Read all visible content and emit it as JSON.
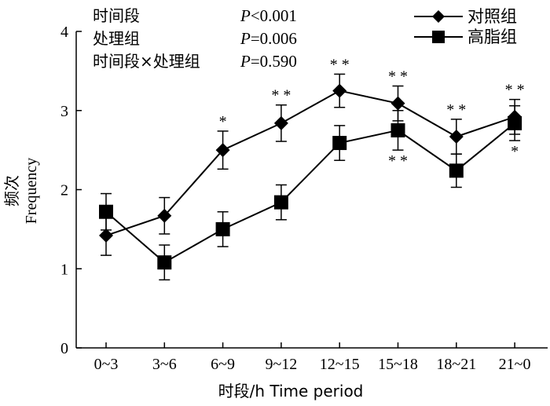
{
  "chart_data": {
    "type": "line",
    "xlabel": "时段/h Time period",
    "ylabel_cn": "频次",
    "ylabel_en": "Frequency",
    "ylim": [
      0,
      4
    ],
    "yticks": [
      0,
      1,
      2,
      3,
      4
    ],
    "categories": [
      "0~3",
      "3~6",
      "6~9",
      "9~12",
      "12~15",
      "15~18",
      "18~21",
      "21~0"
    ],
    "series": [
      {
        "name": "对照组",
        "marker": "diamond",
        "values": [
          1.42,
          1.67,
          2.5,
          2.84,
          3.25,
          3.09,
          2.67,
          2.92
        ],
        "errors": [
          0.25,
          0.23,
          0.24,
          0.23,
          0.21,
          0.22,
          0.22,
          0.22
        ],
        "significance": [
          "",
          "",
          "*",
          "* *",
          "* *",
          "* *",
          "* *",
          "* *"
        ]
      },
      {
        "name": "高脂组",
        "marker": "square",
        "values": [
          1.72,
          1.08,
          1.5,
          1.84,
          2.59,
          2.75,
          2.24,
          2.84
        ],
        "errors": [
          0.23,
          0.22,
          0.22,
          0.22,
          0.22,
          0.25,
          0.21,
          0.22
        ],
        "significance": [
          "",
          "",
          "",
          "",
          "",
          "* *",
          "",
          "*"
        ]
      }
    ],
    "stats": [
      {
        "label": "时间段",
        "p_italic": "P",
        "p_rest": "<0.001"
      },
      {
        "label": "处理组",
        "p_italic": "P",
        "p_rest": "=0.006"
      },
      {
        "label": "时间段×处理组",
        "p_italic": "P",
        "p_rest": "=0.590"
      }
    ],
    "legend_position": "top-right"
  }
}
